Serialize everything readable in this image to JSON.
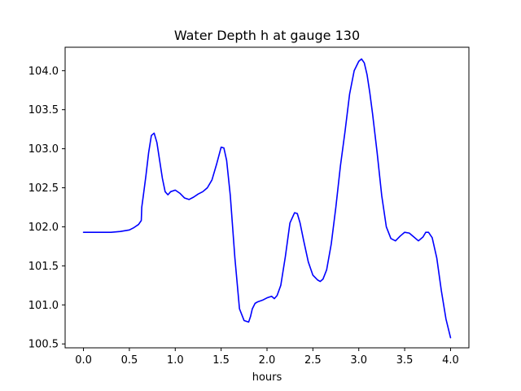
{
  "chart_data": {
    "type": "line",
    "title": "Water Depth h at gauge 130",
    "xlabel": "hours",
    "ylabel": "",
    "xlim": [
      -0.2,
      4.2
    ],
    "ylim": [
      100.45,
      104.3
    ],
    "xticks": [
      0.0,
      0.5,
      1.0,
      1.5,
      2.0,
      2.5,
      3.0,
      3.5,
      4.0
    ],
    "xtick_labels": [
      "0.0",
      "0.5",
      "1.0",
      "1.5",
      "2.0",
      "2.5",
      "3.0",
      "3.5",
      "4.0"
    ],
    "yticks": [
      100.5,
      101.0,
      101.5,
      102.0,
      102.5,
      103.0,
      103.5,
      104.0
    ],
    "ytick_labels": [
      "100.5",
      "101.0",
      "101.5",
      "102.0",
      "102.5",
      "103.0",
      "103.5",
      "104.0"
    ],
    "grid": false,
    "series": [
      {
        "color": "#0000ff",
        "x": [
          0.0,
          0.1,
          0.2,
          0.3,
          0.4,
          0.5,
          0.55,
          0.6,
          0.63,
          0.635,
          0.65,
          0.68,
          0.71,
          0.74,
          0.77,
          0.8,
          0.83,
          0.86,
          0.89,
          0.92,
          0.95,
          1.0,
          1.05,
          1.1,
          1.15,
          1.2,
          1.25,
          1.3,
          1.35,
          1.4,
          1.45,
          1.5,
          1.53,
          1.56,
          1.6,
          1.65,
          1.7,
          1.75,
          1.8,
          1.82,
          1.84,
          1.87,
          1.9,
          1.95,
          2.0,
          2.05,
          2.08,
          2.11,
          2.15,
          2.2,
          2.25,
          2.3,
          2.33,
          2.36,
          2.4,
          2.45,
          2.5,
          2.55,
          2.58,
          2.61,
          2.65,
          2.7,
          2.75,
          2.8,
          2.85,
          2.9,
          2.95,
          3.0,
          3.03,
          3.06,
          3.09,
          3.12,
          3.15,
          3.2,
          3.25,
          3.3,
          3.35,
          3.4,
          3.45,
          3.5,
          3.55,
          3.6,
          3.65,
          3.7,
          3.73,
          3.76,
          3.8,
          3.85,
          3.9,
          3.95,
          4.0
        ],
        "y": [
          101.93,
          101.93,
          101.93,
          101.93,
          101.94,
          101.96,
          101.99,
          102.03,
          102.08,
          102.25,
          102.38,
          102.65,
          102.95,
          103.17,
          103.2,
          103.08,
          102.85,
          102.62,
          102.45,
          102.41,
          102.45,
          102.47,
          102.43,
          102.37,
          102.35,
          102.38,
          102.42,
          102.45,
          102.5,
          102.6,
          102.8,
          103.02,
          103.01,
          102.85,
          102.4,
          101.6,
          100.95,
          100.8,
          100.78,
          100.85,
          100.95,
          101.02,
          101.04,
          101.06,
          101.09,
          101.11,
          101.08,
          101.12,
          101.25,
          101.62,
          102.05,
          102.18,
          102.17,
          102.05,
          101.82,
          101.55,
          101.38,
          101.32,
          101.3,
          101.33,
          101.45,
          101.78,
          102.25,
          102.78,
          103.22,
          103.7,
          104.0,
          104.12,
          104.15,
          104.1,
          103.95,
          103.72,
          103.45,
          102.95,
          102.4,
          102.0,
          101.85,
          101.82,
          101.88,
          101.93,
          101.92,
          101.87,
          101.82,
          101.87,
          101.93,
          101.93,
          101.86,
          101.6,
          101.18,
          100.82,
          100.58
        ]
      }
    ]
  }
}
